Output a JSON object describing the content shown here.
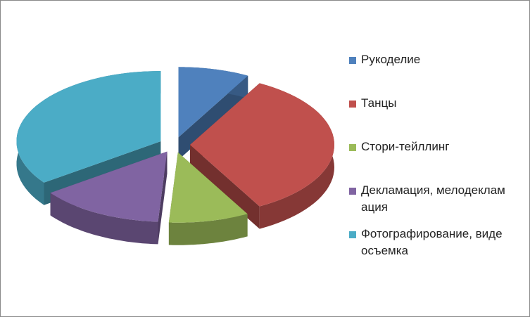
{
  "chart_data": {
    "type": "pie3d",
    "categories": [
      "Рукоделие",
      "Танцы",
      "Стори-тейллинг",
      "Декламация, мелодекламация",
      "Фотографирование, видеосъемка"
    ],
    "values": [
      8,
      34,
      9,
      14,
      35
    ],
    "colors": [
      "#4f81bd",
      "#c0504d",
      "#9bbb59",
      "#8064a2",
      "#4bacc6"
    ],
    "legend": "right"
  }
}
